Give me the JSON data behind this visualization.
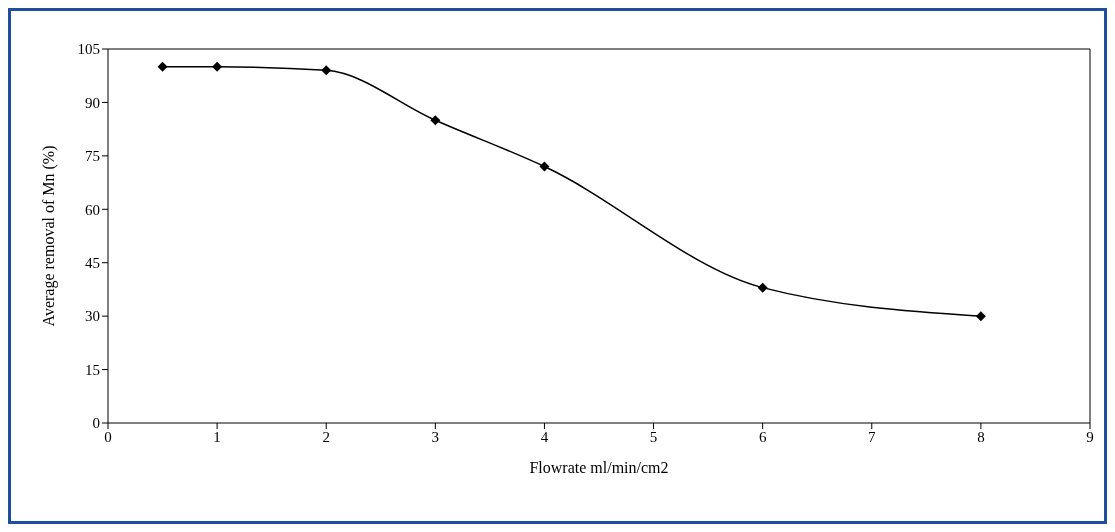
{
  "chart_data": {
    "type": "line",
    "xlabel": "Flowrate ml/min/cm2",
    "ylabel": "Average removal of Mn (%)",
    "x": [
      0.5,
      1,
      2,
      3,
      4,
      6,
      8
    ],
    "series": [
      {
        "color": "#000000",
        "values": [
          100,
          100,
          99,
          85,
          72,
          38,
          30
        ]
      }
    ],
    "xlim": [
      0,
      9
    ],
    "xticks": [
      0,
      1,
      2,
      3,
      4,
      5,
      6,
      7,
      8,
      9
    ],
    "ylim": [
      0,
      105
    ],
    "yticks": [
      0,
      15,
      30,
      45,
      60,
      75,
      90,
      105
    ],
    "grid": false,
    "legend": false,
    "marker": "diamond",
    "line_style": "solid"
  }
}
